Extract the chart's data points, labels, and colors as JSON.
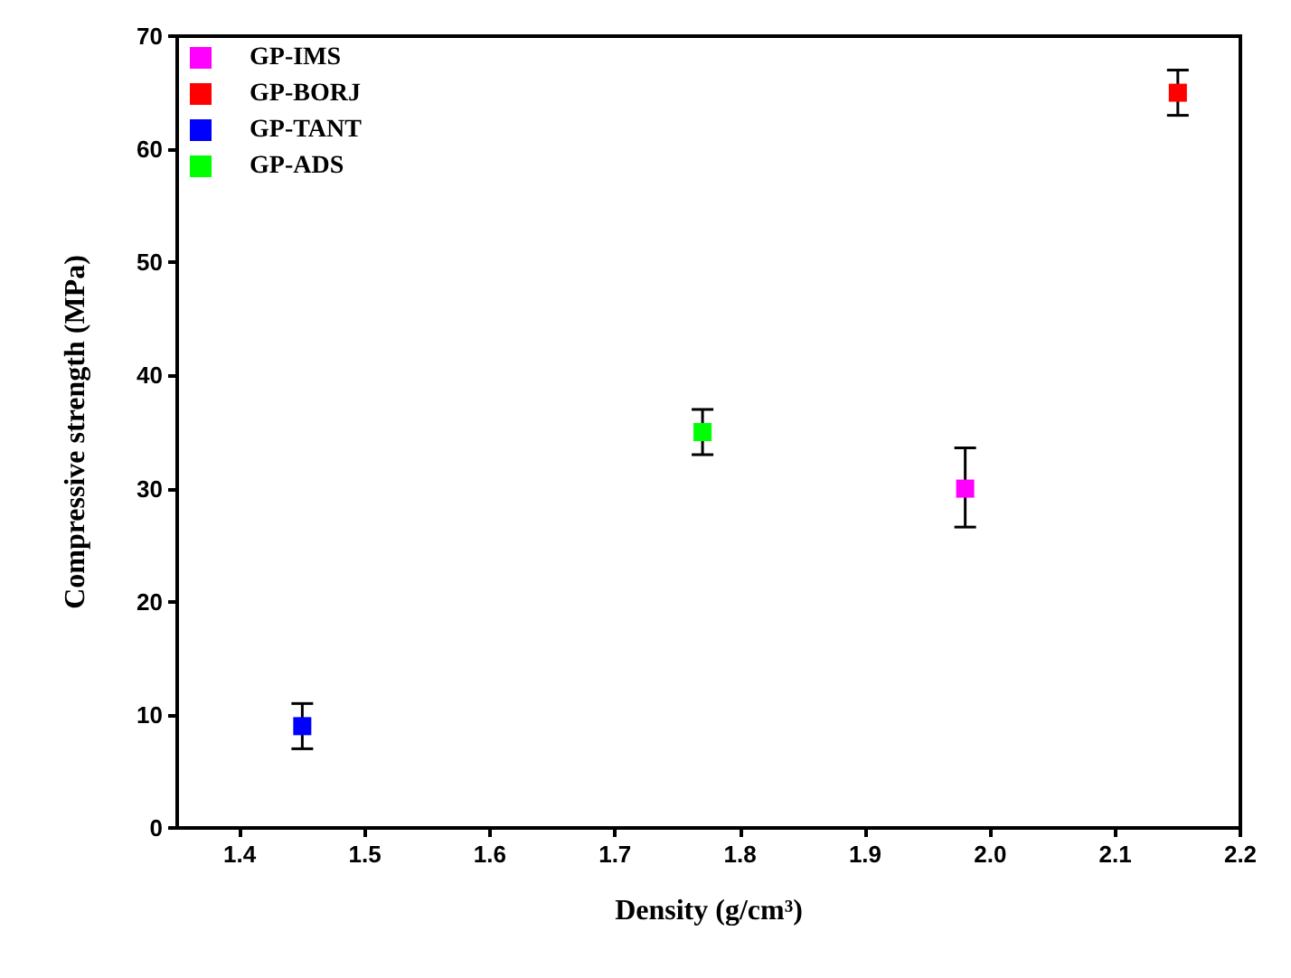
{
  "chart_data": {
    "type": "scatter",
    "xlabel": "Density (g/cm³)",
    "ylabel": "Compressive strength (MPa)",
    "xlim": [
      1.35,
      2.2
    ],
    "xticks": [
      1.4,
      1.5,
      1.6,
      1.7,
      1.8,
      1.9,
      {
        "value": 2,
        "label": "2.0"
      },
      2.1,
      2.2
    ],
    "ylim": [
      0,
      70
    ],
    "yticks": [
      0,
      10,
      20,
      30,
      40,
      50,
      60,
      70
    ],
    "grid": false,
    "legend": "top left",
    "marker": "square",
    "series": [
      {
        "name": "GP-IMS",
        "color": "#ff00ff",
        "x": [
          1.98
        ],
        "values": [
          30
        ],
        "errors": [
          [
            26.6,
            33.6
          ]
        ]
      },
      {
        "name": "GP-BORJ",
        "color": "#ff0000",
        "x": [
          2.15
        ],
        "values": [
          65
        ],
        "errors": [
          2
        ]
      },
      {
        "name": "GP-TANT",
        "color": "#0000ff",
        "x": [
          1.45
        ],
        "values": [
          9
        ],
        "errors": [
          2
        ]
      },
      {
        "name": "GP-ADS",
        "color": "#00ff00",
        "x": [
          1.77
        ],
        "values": [
          35
        ],
        "errors": [
          2
        ]
      }
    ]
  }
}
